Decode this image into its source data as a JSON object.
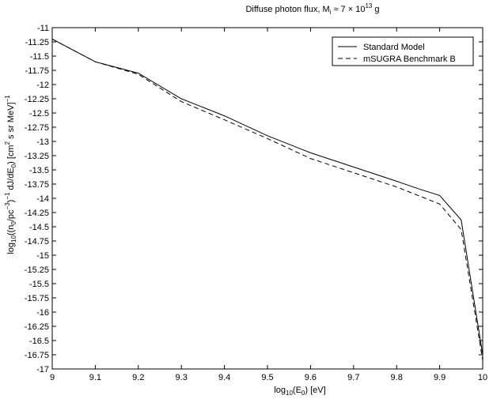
{
  "chart_data": {
    "type": "line",
    "title": {
      "main": "Diffuse photon flux, M",
      "sub": "i",
      "mid": " ≈ 7 × 10",
      "sup": "13",
      "tail": " g"
    },
    "xlabel": {
      "a": "log",
      "a_sub": "10",
      "b": "(E",
      "b_sub": "0",
      "c": ") [eV]"
    },
    "ylabel": {
      "p1": "log",
      "p1_sub": "10",
      "p2": "((n",
      "p2_sub": "0",
      "p3": "/pc",
      "p3_sup": "−3",
      "p4": ")",
      "p4_sup": "−1",
      "p5": " dJ/dE",
      "p5_sub": "0",
      "p6": ") [cm",
      "p6_sup": "2",
      "p7": " s sr MeV]",
      "p7_sup": "−1"
    },
    "xlim": [
      9,
      10
    ],
    "ylim": [
      -17,
      -11
    ],
    "xticks": [
      "9",
      "9.1",
      "9.2",
      "9.3",
      "9.4",
      "9.5",
      "9.6",
      "9.7",
      "9.8",
      "9.9",
      "10"
    ],
    "yticks": [
      "-11",
      "-11.25",
      "-11.5",
      "-11.75",
      "-12",
      "-12.25",
      "-12.5",
      "-12.75",
      "-13",
      "-13.25",
      "-13.5",
      "-13.75",
      "-14",
      "-14.25",
      "-14.5",
      "-14.75",
      "-15",
      "-15.25",
      "-15.5",
      "-15.75",
      "-16",
      "-16.25",
      "-16.5",
      "-16.75",
      "-17"
    ],
    "legend_position": "top-right",
    "series": [
      {
        "name": "Standard Model",
        "style": "solid",
        "x": [
          9.0,
          9.1,
          9.2,
          9.3,
          9.4,
          9.5,
          9.6,
          9.7,
          9.8,
          9.85,
          9.9,
          9.95,
          10.0
        ],
        "y": [
          -11.2,
          -11.6,
          -11.8,
          -12.25,
          -12.55,
          -12.9,
          -13.2,
          -13.45,
          -13.7,
          -13.83,
          -13.95,
          -14.38,
          -16.75
        ]
      },
      {
        "name": "mSUGRA Benchmark B",
        "style": "dashed",
        "x": [
          9.0,
          9.1,
          9.2,
          9.3,
          9.4,
          9.5,
          9.6,
          9.7,
          9.8,
          9.85,
          9.9,
          9.95,
          10.0
        ],
        "y": [
          -11.2,
          -11.6,
          -11.82,
          -12.3,
          -12.62,
          -12.95,
          -13.3,
          -13.55,
          -13.8,
          -13.95,
          -14.1,
          -14.55,
          -16.85
        ]
      }
    ]
  }
}
